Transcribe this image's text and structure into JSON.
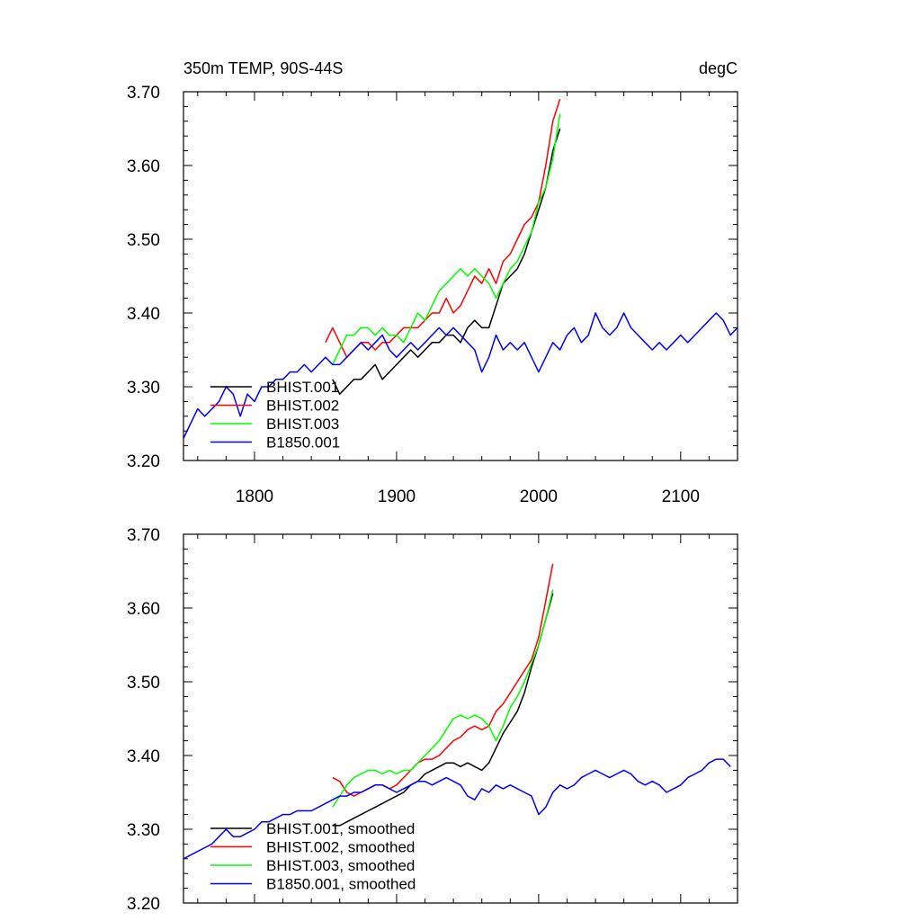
{
  "header": {
    "left_title": "350m TEMP, 90S-44S",
    "right_title": "degC"
  },
  "colors": {
    "BHIST.001": "#000000",
    "BHIST.002": "#ff0000",
    "BHIST.003": "#00ff00",
    "B1850.001": "#0000ff"
  },
  "chart_data": [
    {
      "type": "line",
      "xlim": [
        1750,
        2140
      ],
      "ylim": [
        3.2,
        3.7
      ],
      "yticks": [
        "3.20",
        "3.30",
        "3.40",
        "3.50",
        "3.60",
        "3.70"
      ],
      "xticks": [
        "1800",
        "1900",
        "2000",
        "2100"
      ],
      "legend_placement": "bottom-left",
      "series": [
        {
          "name": "BHIST.001",
          "x": [
            1855,
            1860,
            1865,
            1870,
            1875,
            1880,
            1885,
            1890,
            1895,
            1900,
            1905,
            1910,
            1915,
            1920,
            1925,
            1930,
            1935,
            1940,
            1945,
            1950,
            1955,
            1960,
            1965,
            1970,
            1975,
            1980,
            1985,
            1990,
            1995,
            2000,
            2005,
            2010,
            2015
          ],
          "y": [
            3.31,
            3.29,
            3.3,
            3.31,
            3.31,
            3.32,
            3.33,
            3.31,
            3.32,
            3.33,
            3.34,
            3.35,
            3.34,
            3.35,
            3.36,
            3.36,
            3.37,
            3.37,
            3.36,
            3.38,
            3.39,
            3.38,
            3.38,
            3.41,
            3.44,
            3.45,
            3.46,
            3.48,
            3.51,
            3.54,
            3.57,
            3.62,
            3.65
          ]
        },
        {
          "name": "BHIST.002",
          "x": [
            1850,
            1855,
            1860,
            1865,
            1870,
            1875,
            1880,
            1885,
            1890,
            1895,
            1900,
            1905,
            1910,
            1915,
            1920,
            1925,
            1930,
            1935,
            1940,
            1945,
            1950,
            1955,
            1960,
            1965,
            1970,
            1975,
            1980,
            1985,
            1990,
            1995,
            2000,
            2005,
            2010,
            2015
          ],
          "y": [
            3.36,
            3.38,
            3.36,
            3.34,
            3.35,
            3.36,
            3.36,
            3.35,
            3.36,
            3.36,
            3.37,
            3.38,
            3.38,
            3.38,
            3.39,
            3.4,
            3.4,
            3.42,
            3.4,
            3.41,
            3.43,
            3.45,
            3.44,
            3.46,
            3.44,
            3.47,
            3.48,
            3.5,
            3.52,
            3.53,
            3.55,
            3.6,
            3.66,
            3.69
          ]
        },
        {
          "name": "BHIST.003",
          "x": [
            1855,
            1860,
            1865,
            1870,
            1875,
            1880,
            1885,
            1890,
            1895,
            1900,
            1905,
            1910,
            1915,
            1920,
            1925,
            1930,
            1935,
            1940,
            1945,
            1950,
            1955,
            1960,
            1965,
            1970,
            1975,
            1980,
            1985,
            1990,
            1995,
            2000,
            2005,
            2010,
            2015
          ],
          "y": [
            3.33,
            3.35,
            3.37,
            3.37,
            3.38,
            3.38,
            3.37,
            3.38,
            3.37,
            3.37,
            3.36,
            3.38,
            3.4,
            3.39,
            3.41,
            3.43,
            3.44,
            3.45,
            3.46,
            3.45,
            3.46,
            3.45,
            3.44,
            3.42,
            3.44,
            3.46,
            3.47,
            3.49,
            3.51,
            3.55,
            3.57,
            3.61,
            3.67
          ]
        },
        {
          "name": "B1850.001",
          "x": [
            1750,
            1755,
            1760,
            1765,
            1770,
            1775,
            1780,
            1785,
            1790,
            1795,
            1800,
            1805,
            1810,
            1815,
            1820,
            1825,
            1830,
            1835,
            1840,
            1845,
            1850,
            1855,
            1860,
            1865,
            1870,
            1875,
            1880,
            1885,
            1890,
            1895,
            1900,
            1905,
            1910,
            1915,
            1920,
            1925,
            1930,
            1935,
            1940,
            1945,
            1950,
            1955,
            1960,
            1965,
            1970,
            1975,
            1980,
            1985,
            1990,
            1995,
            2000,
            2005,
            2010,
            2015,
            2020,
            2025,
            2030,
            2035,
            2040,
            2045,
            2050,
            2055,
            2060,
            2065,
            2070,
            2075,
            2080,
            2085,
            2090,
            2095,
            2100,
            2105,
            2110,
            2115,
            2120,
            2125,
            2130,
            2135,
            2140
          ],
          "y": [
            3.23,
            3.25,
            3.27,
            3.26,
            3.27,
            3.28,
            3.3,
            3.29,
            3.26,
            3.29,
            3.28,
            3.3,
            3.3,
            3.31,
            3.31,
            3.32,
            3.32,
            3.33,
            3.32,
            3.33,
            3.34,
            3.33,
            3.33,
            3.34,
            3.35,
            3.36,
            3.35,
            3.36,
            3.37,
            3.35,
            3.34,
            3.35,
            3.36,
            3.35,
            3.36,
            3.37,
            3.38,
            3.37,
            3.38,
            3.37,
            3.36,
            3.35,
            3.32,
            3.34,
            3.37,
            3.35,
            3.36,
            3.35,
            3.36,
            3.34,
            3.32,
            3.34,
            3.36,
            3.35,
            3.37,
            3.38,
            3.36,
            3.37,
            3.4,
            3.38,
            3.37,
            3.38,
            3.4,
            3.38,
            3.37,
            3.36,
            3.35,
            3.36,
            3.35,
            3.36,
            3.37,
            3.36,
            3.37,
            3.38,
            3.39,
            3.4,
            3.39,
            3.37,
            3.38
          ]
        }
      ]
    },
    {
      "type": "line",
      "xlim": [
        1750,
        2140
      ],
      "ylim": [
        3.2,
        3.7
      ],
      "yticks": [
        "3.20",
        "3.30",
        "3.40",
        "3.50",
        "3.60",
        "3.70"
      ],
      "xticks": [],
      "legend_placement": "bottom-left",
      "series": [
        {
          "name": "BHIST.001, smoothed",
          "x": [
            1855,
            1860,
            1865,
            1870,
            1875,
            1880,
            1885,
            1890,
            1895,
            1900,
            1905,
            1910,
            1915,
            1920,
            1925,
            1930,
            1935,
            1940,
            1945,
            1950,
            1955,
            1960,
            1965,
            1970,
            1975,
            1980,
            1985,
            1990,
            1995,
            2000,
            2005,
            2010
          ],
          "y": [
            3.305,
            3.305,
            3.31,
            3.315,
            3.32,
            3.325,
            3.33,
            3.335,
            3.34,
            3.345,
            3.35,
            3.36,
            3.365,
            3.375,
            3.38,
            3.385,
            3.39,
            3.39,
            3.385,
            3.39,
            3.385,
            3.38,
            3.39,
            3.41,
            3.43,
            3.445,
            3.46,
            3.485,
            3.52,
            3.55,
            3.585,
            3.62
          ]
        },
        {
          "name": "BHIST.002, smoothed",
          "x": [
            1855,
            1860,
            1865,
            1870,
            1875,
            1880,
            1885,
            1890,
            1895,
            1900,
            1905,
            1910,
            1915,
            1920,
            1925,
            1930,
            1935,
            1940,
            1945,
            1950,
            1955,
            1960,
            1965,
            1970,
            1975,
            1980,
            1985,
            1990,
            1995,
            2000,
            2005,
            2010
          ],
          "y": [
            3.37,
            3.365,
            3.35,
            3.345,
            3.35,
            3.355,
            3.36,
            3.36,
            3.355,
            3.36,
            3.37,
            3.38,
            3.39,
            3.395,
            3.395,
            3.4,
            3.41,
            3.42,
            3.425,
            3.435,
            3.44,
            3.435,
            3.44,
            3.46,
            3.47,
            3.485,
            3.5,
            3.515,
            3.53,
            3.56,
            3.61,
            3.66
          ]
        },
        {
          "name": "BHIST.003, smoothed",
          "x": [
            1855,
            1860,
            1865,
            1870,
            1875,
            1880,
            1885,
            1890,
            1895,
            1900,
            1905,
            1910,
            1915,
            1920,
            1925,
            1930,
            1935,
            1940,
            1945,
            1950,
            1955,
            1960,
            1965,
            1970,
            1975,
            1980,
            1985,
            1990,
            1995,
            2000,
            2005,
            2010
          ],
          "y": [
            3.33,
            3.345,
            3.36,
            3.37,
            3.375,
            3.38,
            3.38,
            3.375,
            3.38,
            3.375,
            3.38,
            3.38,
            3.39,
            3.4,
            3.41,
            3.42,
            3.435,
            3.45,
            3.455,
            3.45,
            3.455,
            3.45,
            3.44,
            3.42,
            3.44,
            3.465,
            3.48,
            3.5,
            3.525,
            3.55,
            3.585,
            3.625
          ]
        },
        {
          "name": "B1850.001, smoothed",
          "x": [
            1750,
            1755,
            1760,
            1765,
            1770,
            1775,
            1780,
            1785,
            1790,
            1795,
            1800,
            1805,
            1810,
            1815,
            1820,
            1825,
            1830,
            1835,
            1840,
            1845,
            1850,
            1855,
            1860,
            1865,
            1870,
            1875,
            1880,
            1885,
            1890,
            1895,
            1900,
            1905,
            1910,
            1915,
            1920,
            1925,
            1930,
            1935,
            1940,
            1945,
            1950,
            1955,
            1960,
            1965,
            1970,
            1975,
            1980,
            1985,
            1990,
            1995,
            2000,
            2005,
            2010,
            2015,
            2020,
            2025,
            2030,
            2035,
            2040,
            2045,
            2050,
            2055,
            2060,
            2065,
            2070,
            2075,
            2080,
            2085,
            2090,
            2095,
            2100,
            2105,
            2110,
            2115,
            2120,
            2125,
            2130,
            2135
          ],
          "y": [
            3.26,
            3.265,
            3.27,
            3.275,
            3.28,
            3.29,
            3.3,
            3.29,
            3.29,
            3.295,
            3.3,
            3.31,
            3.31,
            3.315,
            3.32,
            3.32,
            3.325,
            3.325,
            3.325,
            3.33,
            3.335,
            3.34,
            3.345,
            3.345,
            3.35,
            3.35,
            3.355,
            3.36,
            3.36,
            3.355,
            3.35,
            3.355,
            3.36,
            3.365,
            3.365,
            3.36,
            3.365,
            3.37,
            3.365,
            3.36,
            3.345,
            3.34,
            3.355,
            3.35,
            3.36,
            3.355,
            3.36,
            3.355,
            3.35,
            3.345,
            3.32,
            3.33,
            3.35,
            3.36,
            3.355,
            3.36,
            3.37,
            3.375,
            3.38,
            3.375,
            3.37,
            3.375,
            3.38,
            3.375,
            3.365,
            3.36,
            3.365,
            3.36,
            3.35,
            3.355,
            3.36,
            3.37,
            3.375,
            3.38,
            3.39,
            3.395,
            3.395,
            3.385
          ]
        }
      ]
    }
  ]
}
